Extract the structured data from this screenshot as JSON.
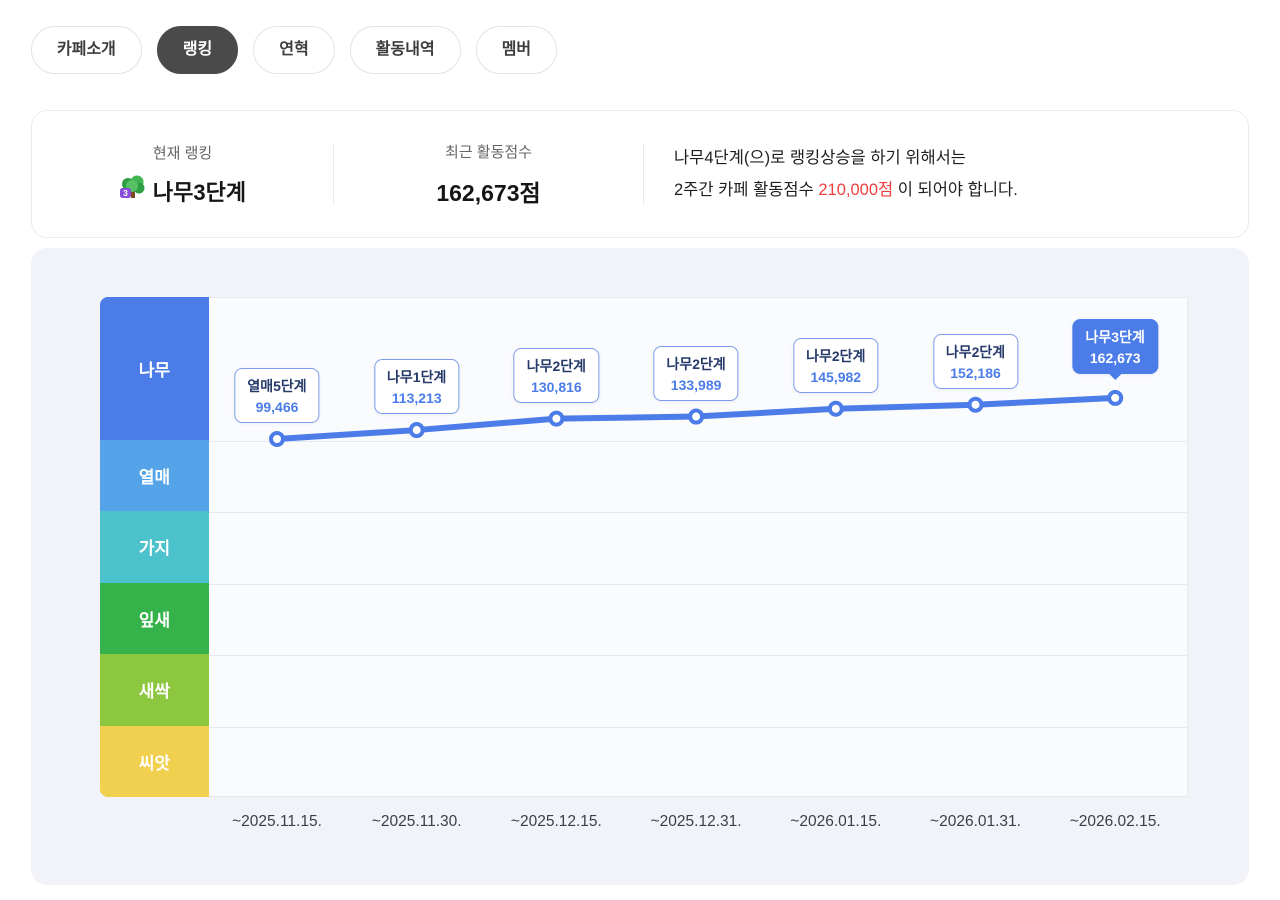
{
  "tabs": [
    {
      "name": "tab-cafe-intro",
      "label": "카페소개",
      "active": false
    },
    {
      "name": "tab-ranking",
      "label": "랭킹",
      "active": true
    },
    {
      "name": "tab-history",
      "label": "연혁",
      "active": false
    },
    {
      "name": "tab-activity",
      "label": "활동내역",
      "active": false
    },
    {
      "name": "tab-members",
      "label": "멤버",
      "active": false
    }
  ],
  "summary": {
    "current_rank_label": "현재 랭킹",
    "current_rank_value": "나무3단계",
    "rank_icon": "tree-rank-badge-icon",
    "recent_score_label": "최근 활동점수",
    "recent_score_value": "162,673점",
    "notice_line1": "나무4단계(으)로 랭킹상승을 하기 위해서는",
    "notice_line2_prefix": "2주간 카페 활동점수 ",
    "notice_target_score": "210,000점",
    "notice_line2_suffix": " 이 되어야 합니다.",
    "target_score_color": "#f03e3e"
  },
  "chart_data": {
    "type": "line",
    "x": [
      "~2025.11.15.",
      "~2025.11.30.",
      "~2025.12.15.",
      "~2025.12.31.",
      "~2026.01.15.",
      "~2026.01.31.",
      "~2026.02.15."
    ],
    "values": [
      99466,
      113213,
      130816,
      133989,
      145982,
      152186,
      162673
    ],
    "point_labels": [
      {
        "rank": "열매5단계",
        "score": "99,466",
        "highlight": false
      },
      {
        "rank": "나무1단계",
        "score": "113,213",
        "highlight": false
      },
      {
        "rank": "나무2단계",
        "score": "130,816",
        "highlight": false
      },
      {
        "rank": "나무2단계",
        "score": "133,989",
        "highlight": false
      },
      {
        "rank": "나무2단계",
        "score": "145,982",
        "highlight": false
      },
      {
        "rank": "나무2단계",
        "score": "152,186",
        "highlight": false
      },
      {
        "rank": "나무3단계",
        "score": "162,673",
        "highlight": true
      }
    ],
    "bands": [
      {
        "name": "tree",
        "label": "나무",
        "color": "#4b7ce8",
        "span": 2
      },
      {
        "name": "fruit",
        "label": "열매",
        "color": "#55a3e8",
        "span": 1
      },
      {
        "name": "branch",
        "label": "가지",
        "color": "#4cc2cd",
        "span": 1
      },
      {
        "name": "leaf",
        "label": "잎새",
        "color": "#36b24a",
        "span": 1
      },
      {
        "name": "sprout",
        "label": "새싹",
        "color": "#8dc63f",
        "span": 1
      },
      {
        "name": "seed",
        "label": "씨앗",
        "color": "#f0d04e",
        "span": 1
      }
    ],
    "line_color": "#4b7ce8",
    "grid": true,
    "legend_position": "left"
  }
}
